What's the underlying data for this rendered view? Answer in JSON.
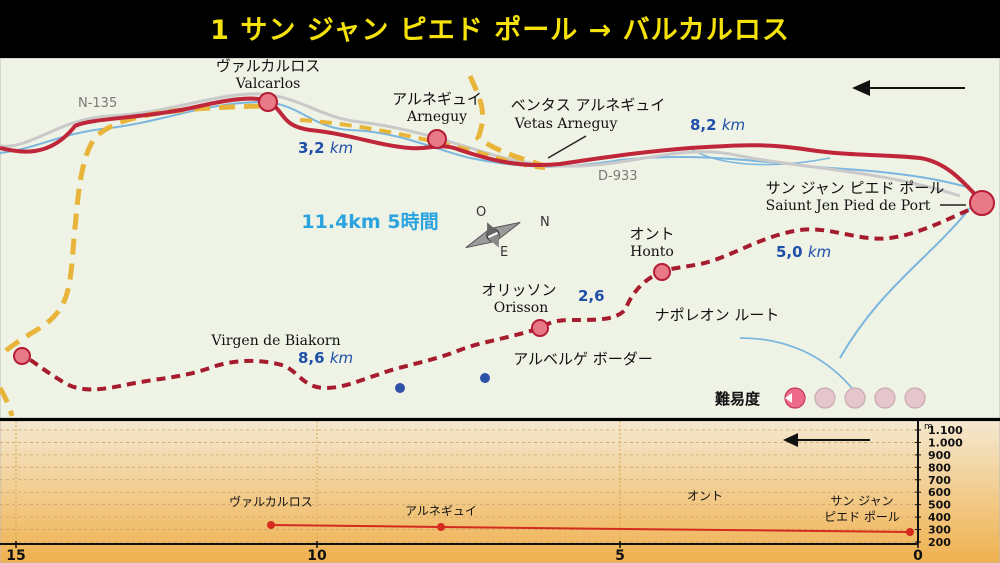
{
  "title": "1 サン ジャン ピエド ポール → バルカルロス",
  "map": {
    "roads": {
      "n135": "N-135",
      "d933": "D-933"
    },
    "places": {
      "valcarlos": {
        "jp": "ヴァルカルロス",
        "latin": "Valcarlos"
      },
      "arneguy": {
        "jp": "アルネギュイ",
        "latin": "Arneguy"
      },
      "ventas": {
        "jp": "ベンタス アルネギュイ",
        "latin": "Vetas Arneguy"
      },
      "sjpp": {
        "jp": "サン ジャン ピエド ポール",
        "latin": "Saiunt Jen Pied de Port"
      },
      "honto": {
        "jp": "オント",
        "latin": "Honto"
      },
      "orisson": {
        "jp": "オリッソン",
        "latin": "Orisson"
      },
      "biakorn": {
        "latin": "Virgen de Biakorn"
      },
      "napoleon": {
        "jp": "ナポレオン ルート"
      },
      "albergue": {
        "jp": "アルベルゲ ボーダー"
      }
    },
    "distances": {
      "d32": {
        "num": "3,2",
        "unit": "km"
      },
      "d82": {
        "num": "8,2",
        "unit": "km"
      },
      "d50": {
        "num": "5,0",
        "unit": "km"
      },
      "d26": {
        "num": "2,6"
      },
      "d86": {
        "num": "8,6",
        "unit": "km"
      }
    },
    "summary": "11.4km 5時間",
    "compass": {
      "o": "O",
      "e": "E",
      "n": "N"
    },
    "difficulty": {
      "label": "難易度",
      "level": 1,
      "max": 5
    },
    "colors": {
      "route": "#c0263a",
      "napoleon": "#a61c2e",
      "river": "#7bb6de",
      "yellow": "#e8b43a",
      "bg": "#eef3e6"
    }
  },
  "profile": {
    "y_ticks": [
      "1.100",
      "1.000",
      "900",
      "800",
      "700",
      "600",
      "500",
      "400",
      "300",
      "200"
    ],
    "y_unit": "m",
    "x_ticks": [
      "15",
      "10",
      "5",
      "0"
    ],
    "labels": {
      "valcarlos": "ヴァルカルロス",
      "arneguy": "アルネギュイ",
      "honto": "オント",
      "sjpp1": "サン ジャン",
      "sjpp2": "ピエド ポール"
    },
    "colors": {
      "line": "#d42b1e",
      "fill_top": "#f4e8cf",
      "fill_bottom": "#f0b14f"
    }
  }
}
